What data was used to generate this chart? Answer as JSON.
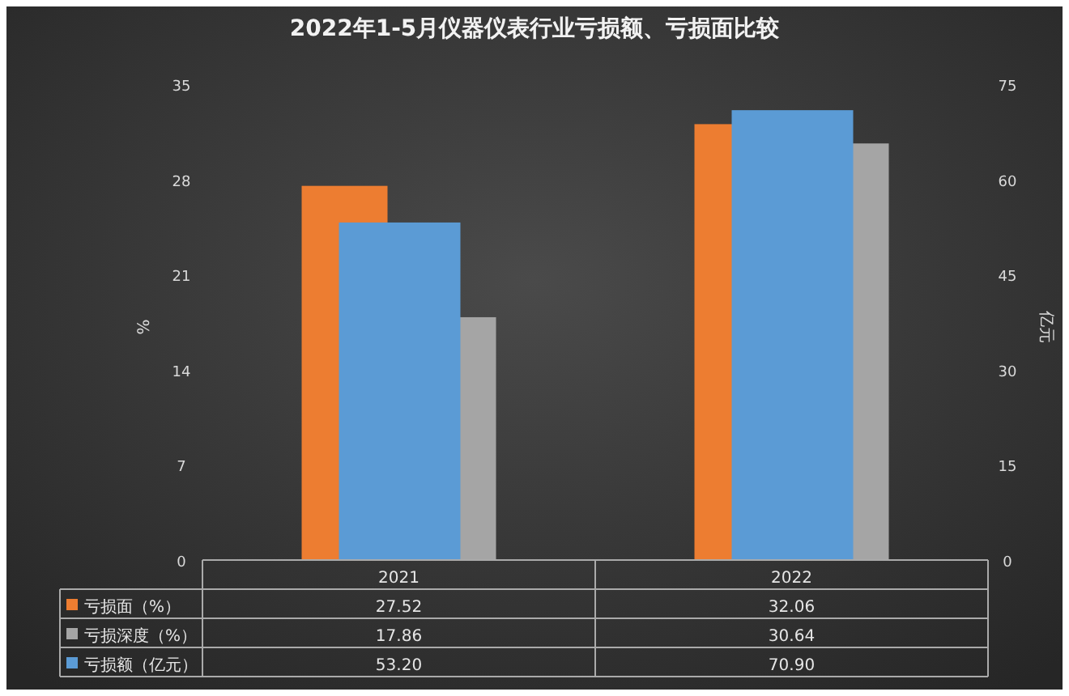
{
  "chart_data": {
    "type": "bar",
    "title": "2022年1-5月仪器仪表行业亏损额、亏损面比较",
    "ylabel": "%",
    "y2label": "亿元",
    "categories": [
      "2021",
      "2022"
    ],
    "series": [
      {
        "name": "亏损面（%）",
        "color": "#ed7d31",
        "values": [
          27.52,
          32.06
        ],
        "value_labels": [
          "27.52",
          "32.06"
        ]
      },
      {
        "name": "亏损深度（%）",
        "color": "#a5a5a5",
        "values": [
          17.86,
          30.64
        ],
        "value_labels": [
          "17.86",
          "30.64"
        ]
      },
      {
        "name": "亏损额（亿元）",
        "color": "#5b9bd5",
        "values": [
          53.2,
          70.9
        ],
        "value_labels": [
          "53.20",
          "70.90"
        ],
        "axis": "y2"
      }
    ],
    "ylim": [
      0,
      35
    ],
    "yticks": [
      0,
      7,
      14,
      21,
      28,
      35
    ],
    "y2lim": [
      0,
      75
    ],
    "y2ticks": [
      0,
      15,
      30,
      45,
      60,
      75
    ],
    "legend": "bottom"
  }
}
